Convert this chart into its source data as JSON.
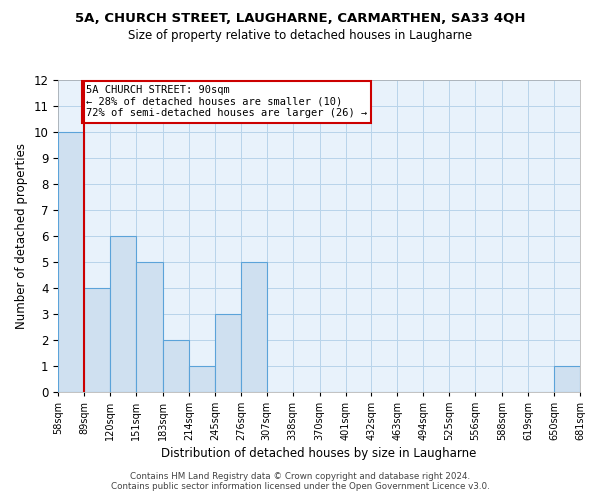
{
  "title": "5A, CHURCH STREET, LAUGHARNE, CARMARTHEN, SA33 4QH",
  "subtitle": "Size of property relative to detached houses in Laugharne",
  "xlabel": "Distribution of detached houses by size in Laugharne",
  "ylabel": "Number of detached properties",
  "bin_edges": [
    58,
    89,
    120,
    151,
    183,
    214,
    245,
    276,
    307,
    338,
    370,
    401,
    432,
    463,
    494,
    525,
    556,
    588,
    619,
    650,
    681
  ],
  "bin_labels": [
    "58sqm",
    "89sqm",
    "120sqm",
    "151sqm",
    "183sqm",
    "214sqm",
    "245sqm",
    "276sqm",
    "307sqm",
    "338sqm",
    "370sqm",
    "401sqm",
    "432sqm",
    "463sqm",
    "494sqm",
    "525sqm",
    "556sqm",
    "588sqm",
    "619sqm",
    "650sqm",
    "681sqm"
  ],
  "bar_heights": [
    10,
    4,
    6,
    5,
    2,
    1,
    3,
    5,
    0,
    0,
    0,
    0,
    0,
    0,
    0,
    0,
    0,
    0,
    0,
    1
  ],
  "bar_color": "#cfe0f0",
  "bar_edge_color": "#5ba3d9",
  "grid_color": "#b8d4ea",
  "background_color": "#e8f2fb",
  "property_line_x": 89,
  "property_line_color": "#cc0000",
  "annotation_text": "5A CHURCH STREET: 90sqm\n← 28% of detached houses are smaller (10)\n72% of semi-detached houses are larger (26) →",
  "annotation_box_color": "#ffffff",
  "annotation_box_edge": "#cc0000",
  "ylim": [
    0,
    12
  ],
  "yticks": [
    0,
    1,
    2,
    3,
    4,
    5,
    6,
    7,
    8,
    9,
    10,
    11,
    12
  ],
  "footer_line1": "Contains HM Land Registry data © Crown copyright and database right 2024.",
  "footer_line2": "Contains public sector information licensed under the Open Government Licence v3.0."
}
